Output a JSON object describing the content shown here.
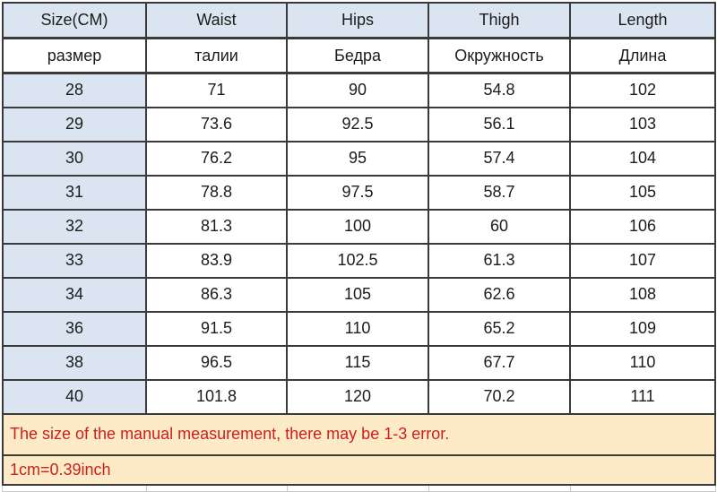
{
  "table": {
    "header_en": [
      "Size(CM)",
      "Waist",
      "Hips",
      "Thigh",
      "Length"
    ],
    "header_ru": [
      "размер",
      "талии",
      "Бедра",
      "Окружность",
      "Длина"
    ],
    "rows": [
      [
        "28",
        "71",
        "90",
        "54.8",
        "102"
      ],
      [
        "29",
        "73.6",
        "92.5",
        "56.1",
        "103"
      ],
      [
        "30",
        "76.2",
        "95",
        "57.4",
        "104"
      ],
      [
        "31",
        "78.8",
        "97.5",
        "58.7",
        "105"
      ],
      [
        "32",
        "81.3",
        "100",
        "60",
        "106"
      ],
      [
        "33",
        "83.9",
        "102.5",
        "61.3",
        "107"
      ],
      [
        "34",
        "86.3",
        "105",
        "62.6",
        "108"
      ],
      [
        "36",
        "91.5",
        "110",
        "65.2",
        "109"
      ],
      [
        "38",
        "96.5",
        "115",
        "67.7",
        "110"
      ],
      [
        "40",
        "101.8",
        "120",
        "70.2",
        "111"
      ]
    ]
  },
  "notes": {
    "line1": "The size of the manual measurement, there may be 1-3 error.",
    "line2": "1cm=0.39inch"
  },
  "colors": {
    "header_bg": "#dbe5f1",
    "cell_bg": "#ffffff",
    "note_bg": "#fdeac7",
    "note_text": "#cc2020",
    "grid_border": "#3a3a3a"
  }
}
